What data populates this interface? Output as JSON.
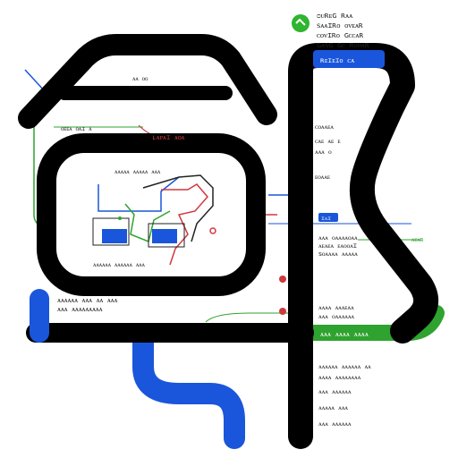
{
  "colors": {
    "ink": "#000000",
    "blue": "#1a56db",
    "green": "#2fa32f",
    "red": "#d0393e",
    "text": "#222222",
    "badge_green": "#2fb52f"
  },
  "icons": {
    "top_badge": "green-circle-icon",
    "pin": "red-map-pin-icon"
  },
  "labels": {
    "top_right_1": "ᴑᴜʀᴇɢ ʀᴀᴀ",
    "top_right_2": "ꜱᴀᴀɪʀᴏ ᴏᴠᴇᴀʀ",
    "top_right_3": "ᴄᴏᴠɪʀᴏ ɢᴄᴄᴀʀ",
    "top_right_4": "ɢᴀꜱɢ ɢᴄ ʀᴏᴏᴀʀ",
    "blue_tab": "ʀᴇɪᴇɪᴏ ᴄᴀ",
    "top_left_small": "ᴀᴀ ᴏᴏ",
    "mid_left_small": "ᴏᴇᴇᴀ ᴏᴀɪ ᴀ",
    "red_label": "ʟᴀᴘᴀɪ ᴀᴏᴀ",
    "right_a1": "ᴄᴏᴀᴀᴇᴀ",
    "right_a2": "ᴄᴀᴇ ᴀᴇ ᴇ",
    "right_a3": "ᴀᴀᴀ ᴏ",
    "right_a4": "ᴇᴏᴀᴀᴇ",
    "right_blue_chip": "ɪᴀɪ",
    "right_b1": "ᴀᴀᴀ ᴏᴀᴀᴀᴀᴏᴀᴀ",
    "right_b2": "ᴀᴇᴀᴇᴀ ᴇᴀᴏᴏᴀɪ",
    "right_b3": "ꜱᴏᴀᴀᴀᴀ ᴀᴀᴀᴀᴀ",
    "right_green_small": "ᴀᴇᴀʀ",
    "right_c1": "ᴀᴀᴀᴀ ᴀᴀᴀᴇᴀᴀ",
    "right_c2": "ᴀᴀᴀ ᴏᴀᴀᴀᴀᴀᴀ",
    "green_bar": "ᴀᴀᴀ ᴀᴀᴀᴀ ᴀᴀᴀᴀ",
    "right_d1": "ᴀᴀᴀᴀᴀᴀ ᴀᴀᴀᴀᴀᴀ ᴀᴀ",
    "right_d2": "ᴀᴀᴀᴀ ᴀᴀᴀᴀᴀᴀᴀᴀ",
    "right_d3": "ᴀᴀᴀ ᴀᴀᴀᴀᴀᴀ",
    "right_d4": "ᴀᴀᴀᴀᴀ ᴀᴀᴀ",
    "right_d5": "ᴀᴀᴀ ᴀᴀᴀᴀᴀᴀ",
    "center_title": "ᴀᴀᴀᴀᴀ ᴀᴀᴀᴀᴀ ᴀᴀᴀ",
    "center_bottom": "ᴀᴀᴀᴀᴀᴀ ᴀᴀᴀᴀᴀᴀ ᴀᴀᴀ",
    "left_mid_1": "ᴀᴀᴀᴀᴀᴀ ᴀᴀᴀ ᴀᴀ ᴀᴀᴀ",
    "left_mid_2": "ᴀᴀᴀ ᴀᴀᴀᴀᴀᴀᴀᴀᴀ"
  }
}
